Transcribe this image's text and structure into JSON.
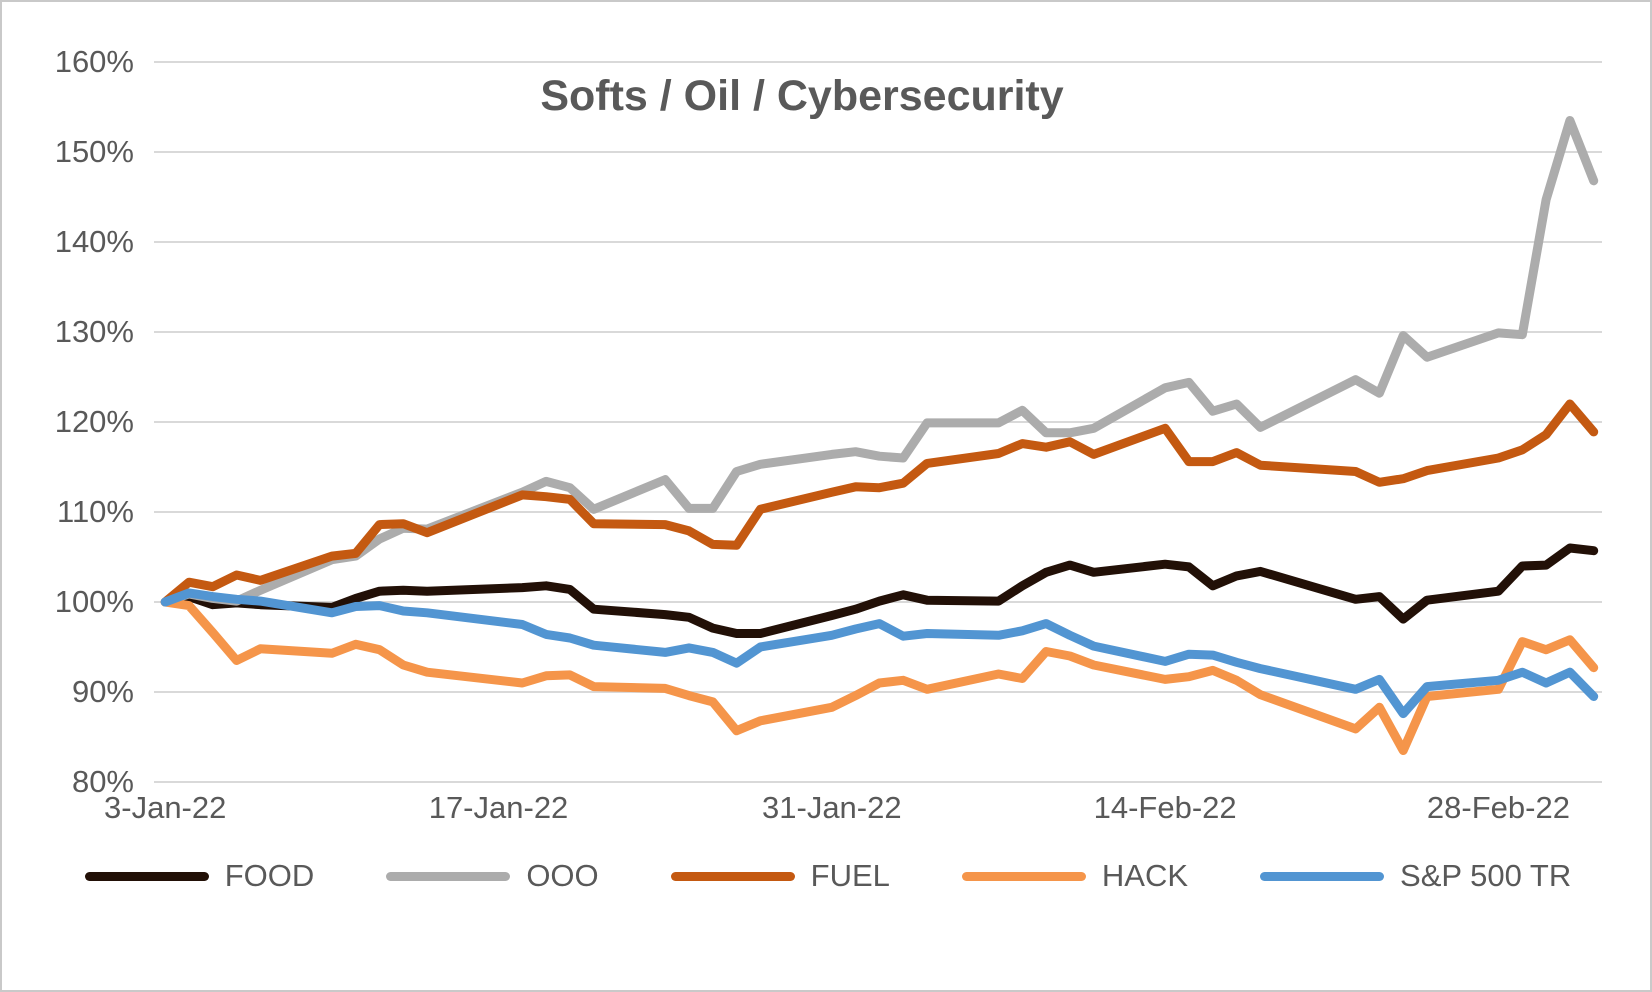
{
  "chart_data": {
    "type": "line",
    "title": "Softs / Oil / Cybersecurity",
    "grid": true,
    "legend_position": "bottom",
    "colors": {
      "axis_text": "#595959",
      "title_text": "#595959",
      "gridline": "#d9d9d9",
      "background": "#ffffff"
    },
    "y_axis": {
      "min": 80,
      "max": 160,
      "step": 10,
      "suffix": "%"
    },
    "x_axis": {
      "tick_labels": [
        "3-Jan-22",
        "17-Jan-22",
        "31-Jan-22",
        "14-Feb-22",
        "28-Feb-22"
      ],
      "tick_day_offsets": [
        0,
        14,
        28,
        42,
        56
      ]
    },
    "dates": [
      "3-Jan-22",
      "4-Jan-22",
      "5-Jan-22",
      "6-Jan-22",
      "7-Jan-22",
      "10-Jan-22",
      "11-Jan-22",
      "12-Jan-22",
      "13-Jan-22",
      "14-Jan-22",
      "18-Jan-22",
      "19-Jan-22",
      "20-Jan-22",
      "21-Jan-22",
      "24-Jan-22",
      "25-Jan-22",
      "26-Jan-22",
      "27-Jan-22",
      "28-Jan-22",
      "31-Jan-22",
      "1-Feb-22",
      "2-Feb-22",
      "3-Feb-22",
      "4-Feb-22",
      "7-Feb-22",
      "8-Feb-22",
      "9-Feb-22",
      "10-Feb-22",
      "11-Feb-22",
      "14-Feb-22",
      "15-Feb-22",
      "16-Feb-22",
      "17-Feb-22",
      "18-Feb-22",
      "22-Feb-22",
      "23-Feb-22",
      "24-Feb-22",
      "25-Feb-22",
      "28-Feb-22",
      "1-Mar-22",
      "2-Mar-22",
      "3-Mar-22",
      "4-Mar-22"
    ],
    "day_offsets": [
      0,
      1,
      2,
      3,
      4,
      7,
      8,
      9,
      10,
      11,
      15,
      16,
      17,
      18,
      21,
      22,
      23,
      24,
      25,
      28,
      29,
      30,
      31,
      32,
      35,
      36,
      37,
      38,
      39,
      42,
      43,
      44,
      45,
      46,
      50,
      51,
      52,
      53,
      56,
      57,
      58,
      59,
      60
    ],
    "series": [
      {
        "name": "FOOD",
        "color": "#221007",
        "values": [
          100,
          100.6,
          99.7,
          99.9,
          99.7,
          99.4,
          100.4,
          101.2,
          101.3,
          101.2,
          101.6,
          101.8,
          101.4,
          99.2,
          98.6,
          98.3,
          97.1,
          96.5,
          96.5,
          98.5,
          99.2,
          100.1,
          100.8,
          100.2,
          100.1,
          101.8,
          103.3,
          104.1,
          103.3,
          104.2,
          103.9,
          101.8,
          102.9,
          103.4,
          100.3,
          100.6,
          98.1,
          100.2,
          101.2,
          104.0,
          104.1,
          106.0,
          105.7
        ]
      },
      {
        "name": "OOO",
        "color": "#acacac",
        "values": [
          100,
          100.9,
          100.4,
          100.1,
          101.3,
          104.7,
          105.1,
          107.0,
          108.2,
          108.1,
          112.2,
          113.4,
          112.7,
          110.3,
          113.6,
          110.4,
          110.4,
          114.5,
          115.3,
          116.4,
          116.7,
          116.2,
          116.0,
          119.9,
          119.9,
          121.3,
          118.8,
          118.8,
          119.3,
          123.8,
          124.4,
          121.2,
          122.0,
          119.4,
          124.7,
          123.2,
          129.6,
          127.2,
          129.9,
          129.7,
          144.7,
          153.5,
          146.8
        ]
      },
      {
        "name": "FUEL",
        "color": "#c45911",
        "values": [
          100,
          102.2,
          101.7,
          103.0,
          102.4,
          105.1,
          105.4,
          108.6,
          108.7,
          107.7,
          111.9,
          111.7,
          111.4,
          108.7,
          108.6,
          107.9,
          106.4,
          106.3,
          110.3,
          112.2,
          112.8,
          112.7,
          113.2,
          115.4,
          116.5,
          117.6,
          117.2,
          117.8,
          116.4,
          119.3,
          115.6,
          115.6,
          116.6,
          115.2,
          114.5,
          113.3,
          113.7,
          114.6,
          116.0,
          116.9,
          118.6,
          122.0,
          118.9
        ]
      },
      {
        "name": "HACK",
        "color": "#f5954a",
        "values": [
          100,
          99.6,
          96.6,
          93.5,
          94.8,
          94.3,
          95.3,
          94.7,
          93.0,
          92.2,
          91.0,
          91.8,
          91.9,
          90.6,
          90.4,
          89.6,
          88.9,
          85.7,
          86.8,
          88.3,
          89.6,
          91.0,
          91.3,
          90.3,
          92.0,
          91.5,
          94.5,
          94.0,
          93.0,
          91.4,
          91.7,
          92.4,
          91.3,
          89.7,
          85.9,
          88.3,
          83.5,
          89.5,
          90.3,
          95.6,
          94.7,
          95.8,
          92.7
        ]
      },
      {
        "name": "S&P 500 TR",
        "color": "#5295d2",
        "values": [
          100,
          101.0,
          100.6,
          100.3,
          100.1,
          98.8,
          99.5,
          99.6,
          99.0,
          98.8,
          97.5,
          96.4,
          96.0,
          95.2,
          94.4,
          94.9,
          94.4,
          93.2,
          95.0,
          96.3,
          97.0,
          97.6,
          96.2,
          96.5,
          96.3,
          96.8,
          97.6,
          96.3,
          95.1,
          93.4,
          94.2,
          94.1,
          93.3,
          92.6,
          90.3,
          91.4,
          87.6,
          90.6,
          91.3,
          92.2,
          91.0,
          92.2,
          89.5
        ]
      }
    ]
  }
}
